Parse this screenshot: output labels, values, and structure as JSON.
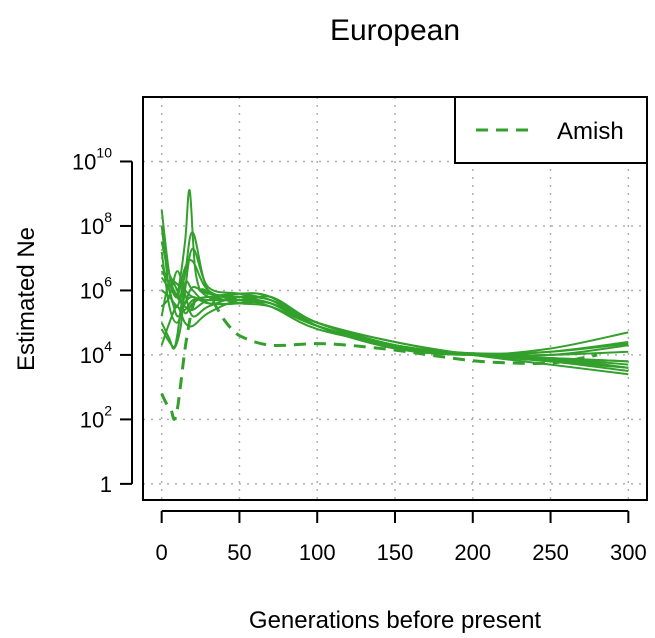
{
  "chart_data": {
    "type": "line",
    "title": "European",
    "xlabel": "Generations before present",
    "ylabel": "Estimated Ne",
    "xlim": [
      -12,
      312
    ],
    "ylim_log10": [
      -0.5,
      12
    ],
    "y_scale": "log10",
    "grid": true,
    "line_color": "#33a02c",
    "x_ticks": [
      {
        "value": 0,
        "label": "0"
      },
      {
        "value": 50,
        "label": "50"
      },
      {
        "value": 100,
        "label": "100"
      },
      {
        "value": 150,
        "label": "150"
      },
      {
        "value": 200,
        "label": "200"
      },
      {
        "value": 250,
        "label": "250"
      },
      {
        "value": 300,
        "label": "300"
      }
    ],
    "y_ticks": [
      {
        "value": 0,
        "base": "1",
        "exp": ""
      },
      {
        "value": 2,
        "base": "10",
        "exp": "2"
      },
      {
        "value": 4,
        "base": "10",
        "exp": "4"
      },
      {
        "value": 6,
        "base": "10",
        "exp": "6"
      },
      {
        "value": 8,
        "base": "10",
        "exp": "8"
      },
      {
        "value": 10,
        "base": "10",
        "exp": "10"
      }
    ],
    "legend": {
      "placement": "top-right",
      "entries": [
        {
          "label": "Amish",
          "style": "dashed",
          "color": "#33a02c"
        }
      ]
    },
    "series": [
      {
        "name": "Amish",
        "style": "dashed",
        "x": [
          0,
          3,
          6,
          8,
          10,
          12,
          14,
          16,
          20,
          25,
          30,
          35,
          40,
          45,
          50,
          60,
          70,
          80,
          100,
          120,
          150,
          175,
          200,
          225,
          250,
          270,
          280
        ],
        "y_log10": [
          2.8,
          2.5,
          2.3,
          2.0,
          2.3,
          3.0,
          3.8,
          4.5,
          5.5,
          6.0,
          5.9,
          5.5,
          5.1,
          4.8,
          4.6,
          4.4,
          4.3,
          4.3,
          4.35,
          4.3,
          4.15,
          3.98,
          3.82,
          3.75,
          3.75,
          3.9,
          4.0
        ]
      },
      {
        "style": "solid",
        "x": [
          0,
          5,
          10,
          15,
          20,
          30,
          50,
          70,
          100,
          150,
          200,
          250,
          300
        ],
        "y_log10": [
          8.5,
          6.5,
          5.8,
          5.5,
          5.4,
          5.7,
          5.9,
          5.8,
          5.0,
          4.4,
          4.0,
          3.8,
          3.5
        ]
      },
      {
        "style": "solid",
        "x": [
          0,
          5,
          10,
          15,
          20,
          30,
          50,
          70,
          100,
          150,
          200,
          250,
          300
        ],
        "y_log10": [
          8.0,
          6.0,
          5.5,
          6.5,
          7.8,
          6.0,
          5.8,
          5.6,
          5.0,
          4.4,
          4.0,
          3.7,
          3.4
        ]
      },
      {
        "style": "solid",
        "x": [
          0,
          5,
          10,
          15,
          20,
          30,
          50,
          70,
          100,
          150,
          200,
          250,
          300
        ],
        "y_log10": [
          7.5,
          6.5,
          6.2,
          6.0,
          5.8,
          5.7,
          5.7,
          5.6,
          4.9,
          4.3,
          4.0,
          3.85,
          3.6
        ]
      },
      {
        "style": "solid",
        "x": [
          0,
          5,
          10,
          15,
          18,
          22,
          30,
          50,
          70,
          100,
          150,
          200,
          250,
          300
        ],
        "y_log10": [
          6.8,
          6.2,
          5.9,
          7.5,
          9.1,
          6.5,
          5.8,
          5.7,
          5.5,
          4.8,
          4.3,
          4.0,
          3.9,
          3.7
        ]
      },
      {
        "style": "solid",
        "x": [
          0,
          5,
          10,
          15,
          20,
          30,
          50,
          70,
          100,
          150,
          200,
          250,
          300
        ],
        "y_log10": [
          6.4,
          6.0,
          5.2,
          5.6,
          6.1,
          5.9,
          5.8,
          5.7,
          5.0,
          4.3,
          4.05,
          4.0,
          4.3
        ]
      },
      {
        "style": "solid",
        "x": [
          0,
          5,
          10,
          15,
          20,
          30,
          50,
          70,
          100,
          150,
          200,
          250,
          300
        ],
        "y_log10": [
          6.0,
          5.8,
          5.5,
          5.4,
          5.7,
          5.8,
          5.9,
          5.8,
          4.9,
          4.2,
          4.0,
          4.2,
          4.7
        ]
      },
      {
        "style": "solid",
        "x": [
          0,
          5,
          10,
          15,
          20,
          30,
          50,
          70,
          100,
          150,
          200,
          250,
          300
        ],
        "y_log10": [
          5.5,
          5.8,
          6.6,
          5.9,
          5.2,
          5.5,
          5.8,
          5.7,
          4.9,
          4.2,
          4.0,
          4.1,
          4.4
        ]
      },
      {
        "style": "solid",
        "x": [
          0,
          5,
          8,
          12,
          15,
          20,
          30,
          50,
          70,
          100,
          150,
          200,
          250,
          300
        ],
        "y_log10": [
          5.0,
          4.5,
          4.2,
          4.8,
          6.0,
          7.3,
          6.1,
          5.9,
          5.7,
          5.0,
          4.3,
          4.0,
          3.9,
          3.8
        ]
      },
      {
        "style": "solid",
        "x": [
          0,
          5,
          8,
          10,
          15,
          20,
          30,
          50,
          70,
          100,
          150,
          200,
          250,
          300
        ],
        "y_log10": [
          4.8,
          4.4,
          4.25,
          4.6,
          6.2,
          6.0,
          5.6,
          5.6,
          5.6,
          5.0,
          4.3,
          4.0,
          3.9,
          3.6
        ]
      },
      {
        "style": "solid",
        "x": [
          0,
          5,
          10,
          15,
          20,
          30,
          50,
          70,
          100,
          150,
          200,
          250,
          300
        ],
        "y_log10": [
          4.3,
          5.0,
          5.5,
          5.0,
          4.9,
          5.3,
          5.7,
          5.6,
          4.9,
          4.25,
          4.05,
          4.1,
          4.35
        ]
      },
      {
        "style": "solid",
        "x": [
          0,
          5,
          10,
          15,
          20,
          30,
          50,
          70,
          100,
          150,
          200,
          250,
          300
        ],
        "y_log10": [
          6.6,
          6.2,
          5.8,
          6.7,
          6.9,
          6.0,
          5.7,
          5.6,
          4.9,
          4.25,
          4.0,
          3.8,
          3.6
        ]
      },
      {
        "style": "solid",
        "x": [
          0,
          5,
          10,
          15,
          20,
          30,
          50,
          70,
          100,
          150,
          200,
          250,
          300
        ],
        "y_log10": [
          7.2,
          5.5,
          5.0,
          5.6,
          5.8,
          5.6,
          5.6,
          5.8,
          5.0,
          4.3,
          4.0,
          3.9,
          3.8
        ]
      },
      {
        "style": "solid",
        "x": [
          0,
          5,
          10,
          15,
          20,
          30,
          50,
          70,
          100,
          150,
          200,
          250,
          300
        ],
        "y_log10": [
          5.2,
          6.3,
          6.0,
          5.3,
          5.6,
          5.8,
          5.6,
          5.5,
          4.9,
          4.3,
          4.0,
          4.0,
          4.1
        ]
      }
    ]
  }
}
